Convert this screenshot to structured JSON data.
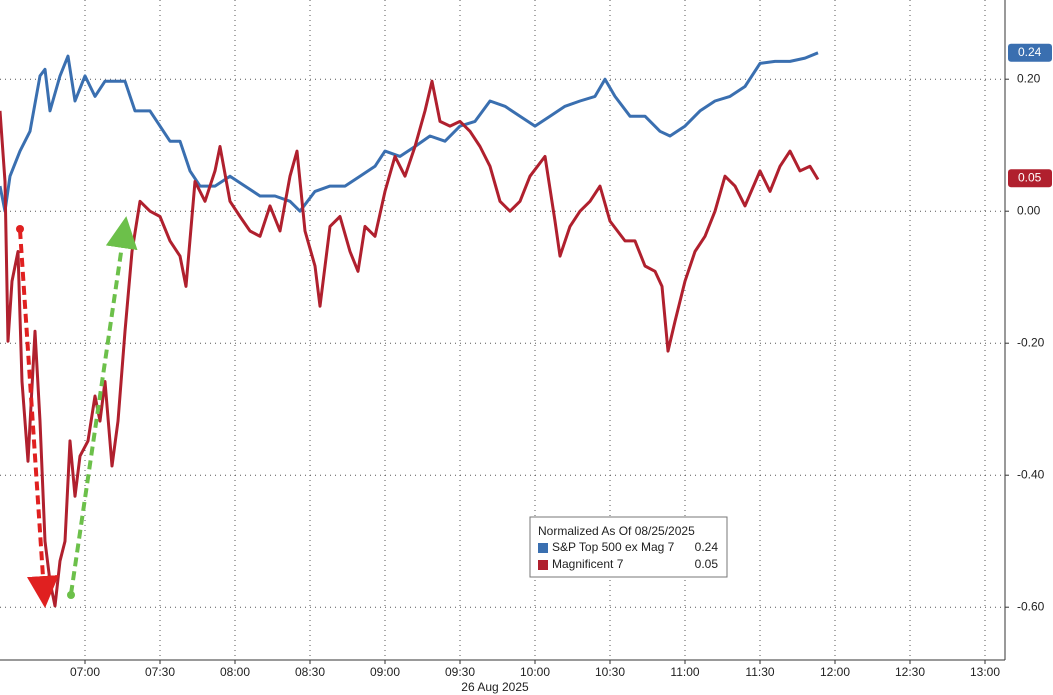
{
  "chart_data": {
    "type": "line",
    "date_label": "26 Aug 2025",
    "legend_title": "Normalized As Of 08/25/2025",
    "xlim": [
      386,
      788
    ],
    "xticks": [
      {
        "value": 420,
        "label": "07:00"
      },
      {
        "value": 450,
        "label": "07:30"
      },
      {
        "value": 480,
        "label": "08:00"
      },
      {
        "value": 510,
        "label": "08:30"
      },
      {
        "value": 540,
        "label": "09:00"
      },
      {
        "value": 570,
        "label": "09:30"
      },
      {
        "value": 600,
        "label": "10:00"
      },
      {
        "value": 630,
        "label": "10:30"
      },
      {
        "value": 660,
        "label": "11:00"
      },
      {
        "value": 690,
        "label": "11:30"
      },
      {
        "value": 720,
        "label": "12:00"
      },
      {
        "value": 750,
        "label": "12:30"
      },
      {
        "value": 780,
        "label": "13:00"
      }
    ],
    "ylim": [
      -0.68,
      0.32
    ],
    "yticks": [
      {
        "value": 0.2,
        "label": "0.20"
      },
      {
        "value": 0,
        "label": "0.00"
      },
      {
        "value": -0.2,
        "label": "-0.20"
      },
      {
        "value": -0.4,
        "label": "-0.40"
      },
      {
        "value": -0.6,
        "label": "-0.60"
      }
    ],
    "grid": true,
    "series": [
      {
        "name": "S&P Top 500 ex Mag 7",
        "color": "#3a6fb0",
        "legend_value": 0.24,
        "x": [
          386,
          388,
          390,
          394,
          398,
          402,
          404,
          406,
          410,
          413.2,
          416,
          420,
          424,
          428,
          432,
          436,
          440,
          446,
          450,
          454,
          458,
          462,
          466,
          472,
          478,
          484,
          490,
          496,
          502,
          506,
          512,
          518,
          524,
          530,
          536,
          540,
          546,
          552,
          558,
          564,
          570,
          576,
          582,
          588,
          594,
          600,
          606,
          612,
          618,
          624,
          628,
          632,
          638,
          644,
          650,
          654,
          660,
          666,
          672,
          678,
          684,
          690,
          696,
          702,
          708,
          713.2
        ],
        "values": [
          0.038,
          0,
          0.053,
          0.091,
          0.121,
          0.205,
          0.215,
          0.152,
          0.205,
          0.235,
          0.167,
          0.205,
          0.174,
          0.197,
          0.197,
          0.197,
          0.152,
          0.152,
          0.129,
          0.106,
          0.106,
          0.061,
          0.038,
          0.038,
          0.053,
          0.038,
          0.023,
          0.023,
          0.015,
          0,
          0.03,
          0.038,
          0.038,
          0.053,
          0.068,
          0.091,
          0.083,
          0.098,
          0.114,
          0.106,
          0.129,
          0.136,
          0.167,
          0.159,
          0.144,
          0.129,
          0.144,
          0.159,
          0.167,
          0.174,
          0.2,
          0.174,
          0.144,
          0.144,
          0.121,
          0.114,
          0.129,
          0.152,
          0.167,
          0.174,
          0.189,
          0.224,
          0.227,
          0.227,
          0.232,
          0.24
        ]
      },
      {
        "name": "Magnificent 7",
        "color": "#b0202e",
        "legend_value": 0.05,
        "x": [
          386,
          388,
          389.2,
          390.8,
          393.2,
          394.8,
          397.2,
          400,
          402,
          404,
          406,
          408,
          410,
          412,
          414,
          416,
          418,
          421.2,
          424,
          426,
          428,
          430.8,
          433.2,
          436,
          438.8,
          442,
          446,
          450,
          454,
          458,
          460.4,
          464,
          468,
          472,
          474,
          478,
          482,
          486,
          490,
          494,
          498,
          502,
          504.8,
          508,
          512,
          514,
          518,
          522,
          526,
          529.2,
          532,
          536,
          540,
          544,
          548,
          552,
          556,
          558.8,
          562,
          566,
          570,
          574,
          578,
          582,
          586,
          590,
          594,
          598,
          604,
          608,
          610,
          614,
          618,
          622,
          626,
          630,
          636,
          640,
          644,
          648,
          650.8,
          653.2,
          656,
          660,
          664,
          668,
          672,
          676,
          680,
          684,
          690,
          694,
          698,
          702,
          706,
          710,
          713.2
        ],
        "values": [
          0.152,
          0.045,
          -0.197,
          -0.106,
          -0.061,
          -0.258,
          -0.379,
          -0.182,
          -0.318,
          -0.5,
          -0.561,
          -0.598,
          -0.53,
          -0.5,
          -0.348,
          -0.432,
          -0.371,
          -0.348,
          -0.28,
          -0.318,
          -0.258,
          -0.386,
          -0.318,
          -0.182,
          -0.061,
          0.015,
          0,
          -0.008,
          -0.045,
          -0.068,
          -0.114,
          0.045,
          0.015,
          0.061,
          0.098,
          0.015,
          -0.008,
          -0.03,
          -0.038,
          0.008,
          -0.03,
          0.053,
          0.091,
          -0.03,
          -0.083,
          -0.144,
          -0.023,
          -0.008,
          -0.061,
          -0.091,
          -0.023,
          -0.038,
          0.03,
          0.083,
          0.053,
          0.098,
          0.152,
          0.197,
          0.136,
          0.129,
          0.136,
          0.121,
          0.098,
          0.068,
          0.015,
          0,
          0.015,
          0.053,
          0.083,
          -0.015,
          -0.068,
          -0.023,
          0,
          0.015,
          0.038,
          -0.015,
          -0.045,
          -0.045,
          -0.083,
          -0.091,
          -0.114,
          -0.212,
          -0.167,
          -0.106,
          -0.061,
          -0.038,
          0,
          0.053,
          0.038,
          0.008,
          0.061,
          0.03,
          0.068,
          0.091,
          0.061,
          0.068,
          0.048
        ]
      }
    ]
  }
}
